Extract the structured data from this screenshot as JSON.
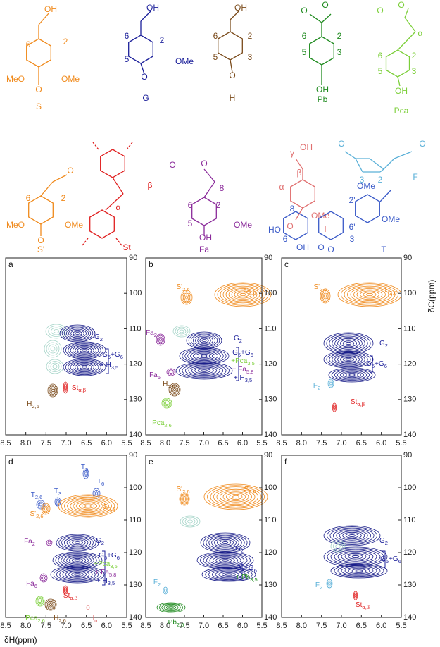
{
  "structures": [
    {
      "label": "S",
      "color": "#f08a1c",
      "texts": [
        "OH",
        "6",
        "2",
        "MeO",
        "OMe",
        "O"
      ]
    },
    {
      "label": "G",
      "color": "#1b1f9a",
      "texts": [
        "OH",
        "6",
        "2",
        "5",
        "OMe",
        "O"
      ]
    },
    {
      "label": "H",
      "color": "#7a4a1a",
      "texts": [
        "OH",
        "6",
        "2",
        "5",
        "3",
        "O"
      ]
    },
    {
      "label": "Pb",
      "color": "#1e8a1e",
      "texts": [
        "O",
        "O",
        "6",
        "2",
        "5",
        "3",
        "OH"
      ]
    },
    {
      "label": "Pca",
      "color": "#7ccf3a",
      "texts": [
        "O",
        "O",
        "α",
        "6",
        "2",
        "5",
        "3",
        "OH"
      ]
    },
    {
      "label": "S'",
      "color": "#f08a1c",
      "texts": [
        "O",
        "6",
        "2",
        "MeO",
        "OMe",
        "O"
      ]
    },
    {
      "label": "St",
      "color": "#e02020",
      "texts": [
        "β",
        "α"
      ]
    },
    {
      "label": "Fa",
      "color": "#8a2a9a",
      "texts": [
        "O",
        "O",
        "8",
        "6",
        "2",
        "5",
        "OMe",
        "OH"
      ]
    },
    {
      "label": "I",
      "color": "#e07070",
      "texts": [
        "OH",
        "γ",
        "β",
        "α",
        "OMe",
        "O"
      ]
    },
    {
      "label": "F",
      "color": "#5ab0d8",
      "texts": [
        "O",
        "O",
        "3",
        "2"
      ]
    },
    {
      "label": "T",
      "color": "#3a5ac8",
      "texts": [
        "OMe",
        "2'",
        "OMe",
        "6'",
        "8",
        "HO",
        "6",
        "OH",
        "O",
        "3",
        "O"
      ]
    }
  ],
  "axes": {
    "xticks": [
      "8.5",
      "8.0",
      "7.5",
      "7.0",
      "6.5",
      "6.0",
      "5.5"
    ],
    "yticks": [
      "90",
      "100",
      "110",
      "120",
      "130",
      "140"
    ],
    "xlabel": "δH(ppm)",
    "ylabel": "δC(ppm)"
  },
  "panels": [
    {
      "letter": "a",
      "annotations": [
        {
          "parts": [
            "G",
            "2"
          ],
          "color": "#1b1f9a"
        },
        {
          "parts": [
            "G",
            "5",
            "+G",
            "6"
          ],
          "color": "#1b1f9a"
        },
        {
          "parts": [
            "+ H",
            "3,5"
          ],
          "color": "#1b1f9a"
        },
        {
          "parts": [
            "St",
            "α,β"
          ],
          "color": "#e02020"
        },
        {
          "parts": [
            "H",
            "2,6"
          ],
          "color": "#7a4a1a"
        }
      ]
    },
    {
      "letter": "b",
      "annotations": [
        {
          "parts": [
            "S'",
            "2,6"
          ],
          "color": "#f08a1c"
        },
        {
          "parts": [
            "S",
            "2,6"
          ],
          "color": "#f08a1c"
        },
        {
          "parts": [
            "Fa",
            "2"
          ],
          "color": "#8a2a9a"
        },
        {
          "parts": [
            "G",
            "2"
          ],
          "color": "#1b1f9a"
        },
        {
          "parts": [
            "G",
            "5",
            "+G",
            "6"
          ],
          "color": "#1b1f9a"
        },
        {
          "parts": [
            "+Pca",
            "3,5"
          ],
          "color": "#7ccf3a"
        },
        {
          "parts": [
            "+ Fa",
            "5,8"
          ],
          "color": "#8a2a9a"
        },
        {
          "parts": [
            "+ H",
            "3,5"
          ],
          "color": "#1b1f9a"
        },
        {
          "parts": [
            "Fa",
            "6"
          ],
          "color": "#8a2a9a"
        },
        {
          "parts": [
            "H",
            "2,6"
          ],
          "color": "#7a4a1a"
        },
        {
          "parts": [
            "Pca",
            "2,6"
          ],
          "color": "#7ccf3a"
        }
      ]
    },
    {
      "letter": "c",
      "annotations": [
        {
          "parts": [
            "S'",
            "2,6"
          ],
          "color": "#f08a1c"
        },
        {
          "parts": [
            "S",
            "2,6"
          ],
          "color": "#f08a1c"
        },
        {
          "parts": [
            "G",
            "2"
          ],
          "color": "#1b1f9a"
        },
        {
          "parts": [
            "G",
            "5",
            "+G",
            "6"
          ],
          "color": "#1b1f9a"
        },
        {
          "parts": [
            "F",
            "2"
          ],
          "color": "#5ab0d8"
        },
        {
          "parts": [
            "St",
            "α,β"
          ],
          "color": "#e02020"
        }
      ]
    },
    {
      "letter": "d",
      "annotations": [
        {
          "parts": [
            "T",
            "8"
          ],
          "color": "#3a5ac8"
        },
        {
          "parts": [
            "T",
            "6"
          ],
          "color": "#3a5ac8"
        },
        {
          "parts": [
            "T",
            "2,6"
          ],
          "color": "#3a5ac8"
        },
        {
          "parts": [
            "T",
            "3"
          ],
          "color": "#3a5ac8"
        },
        {
          "parts": [
            "S",
            "2,6"
          ],
          "color": "#f08a1c"
        },
        {
          "parts": [
            "S'",
            "2,6"
          ],
          "color": "#f08a1c"
        },
        {
          "parts": [
            "G",
            "2"
          ],
          "color": "#1b1f9a"
        },
        {
          "parts": [
            "G",
            "5",
            "+G",
            "6"
          ],
          "color": "#1b1f9a"
        },
        {
          "parts": [
            "+Pca",
            "3,5"
          ],
          "color": "#7ccf3a"
        },
        {
          "parts": [
            "+ Fa",
            "5,8"
          ],
          "color": "#8a2a9a"
        },
        {
          "parts": [
            "+ H",
            "3,5"
          ],
          "color": "#1b1f9a"
        },
        {
          "parts": [
            "Fa",
            "2"
          ],
          "color": "#8a2a9a"
        },
        {
          "parts": [
            "Fa",
            "6"
          ],
          "color": "#8a2a9a"
        },
        {
          "parts": [
            "St",
            "α,β"
          ],
          "color": "#e02020"
        },
        {
          "parts": [
            "Pca",
            "2,6"
          ],
          "color": "#7ccf3a"
        },
        {
          "parts": [
            "H",
            "2,6"
          ],
          "color": "#7a4a1a"
        },
        {
          "parts": [
            "I",
            "α"
          ],
          "color": "#e07070"
        }
      ]
    },
    {
      "letter": "e",
      "annotations": [
        {
          "parts": [
            "S'",
            "2,6"
          ],
          "color": "#f08a1c"
        },
        {
          "parts": [
            "S",
            "2,6"
          ],
          "color": "#f08a1c"
        },
        {
          "parts": [
            "G",
            "2"
          ],
          "color": "#1b1f9a"
        },
        {
          "parts": [
            "G",
            "5",
            "+G",
            "6"
          ],
          "color": "#1b1f9a"
        },
        {
          "parts": [
            "+ Pb",
            "3,5"
          ],
          "color": "#1e8a1e"
        },
        {
          "parts": [
            "F",
            "2"
          ],
          "color": "#5ab0d8"
        },
        {
          "parts": [
            "Pb",
            "2,6"
          ],
          "color": "#1e8a1e"
        }
      ]
    },
    {
      "letter": "f",
      "annotations": [
        {
          "parts": [
            "G",
            "2"
          ],
          "color": "#1b1f9a"
        },
        {
          "parts": [
            "G",
            "5",
            "+G",
            "6"
          ],
          "color": "#1b1f9a"
        },
        {
          "parts": [
            "F",
            "2"
          ],
          "color": "#5ab0d8"
        },
        {
          "parts": [
            "St",
            "α,β"
          ],
          "color": "#e02020"
        }
      ]
    }
  ]
}
